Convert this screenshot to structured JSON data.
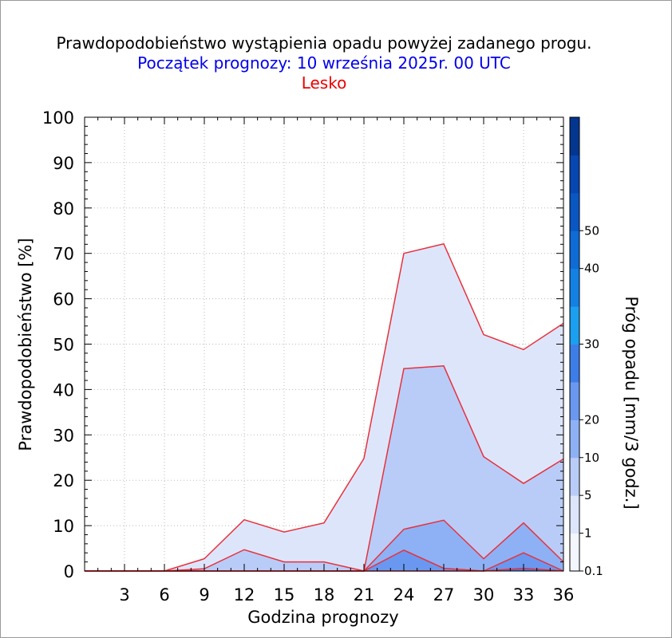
{
  "title": "Prawdopodobieństwo wystąpienia opadu powyżej zadanego progu.",
  "subtitle": "Początek prognozy: 10 września 2025r. 00 UTC",
  "location": "Lesko",
  "chart_data": {
    "type": "area",
    "xlabel": "Godzina prognozy",
    "ylabel": "Prawdopodobieństwo [%]",
    "colorbar_label": "Próg opadu [mm/3 godz.]",
    "xlim": [
      0,
      36
    ],
    "ylim": [
      0,
      100
    ],
    "x_ticks": [
      3,
      6,
      9,
      12,
      15,
      18,
      21,
      24,
      27,
      30,
      33,
      36
    ],
    "y_ticks": [
      0,
      10,
      20,
      30,
      40,
      50,
      60,
      70,
      80,
      90,
      100
    ],
    "grid": true,
    "x": [
      0,
      3,
      6,
      9,
      12,
      15,
      18,
      21,
      24,
      27,
      30,
      33,
      36
    ],
    "series": [
      {
        "name": "0.1",
        "color": "#dde5fb",
        "values": [
          0,
          0,
          0,
          2.7,
          11.3,
          8.6,
          10.6,
          24.8,
          70.0,
          72.1,
          52.1,
          48.8,
          54.6
        ]
      },
      {
        "name": "1",
        "color": "#b9ccf8",
        "values": [
          0,
          0,
          0,
          0.5,
          4.7,
          2.0,
          2.0,
          0,
          44.6,
          45.2,
          25.2,
          19.3,
          24.7
        ]
      },
      {
        "name": "5",
        "color": "#8eb1f5",
        "values": [
          0,
          0,
          0,
          0,
          0,
          0,
          0,
          0,
          9.2,
          11.2,
          2.7,
          10.6,
          2.0
        ]
      },
      {
        "name": "10",
        "color": "#6a98f0",
        "values": [
          0,
          0,
          0,
          0,
          0,
          0,
          0,
          0,
          4.6,
          0.6,
          0,
          4.0,
          0
        ]
      },
      {
        "name": "20",
        "color": "#3d7de8",
        "values": [
          0,
          0,
          0,
          0,
          0,
          0,
          0,
          0,
          0,
          0,
          0,
          0.6,
          0
        ]
      }
    ],
    "colorbar": {
      "tick_labels": [
        "0.1",
        "1",
        "5",
        "10",
        "20",
        "30",
        "40",
        "50"
      ],
      "bands": [
        "#f3f6ff",
        "#dde5fb",
        "#b9ccf8",
        "#8eb1f5",
        "#6a98f0",
        "#3d7de8",
        "#1b9ff0",
        "#1380e3",
        "#0f6bd6",
        "#0a57c4",
        "#0647b2",
        "#03368f"
      ]
    },
    "area_line_color": "#e8313a"
  }
}
